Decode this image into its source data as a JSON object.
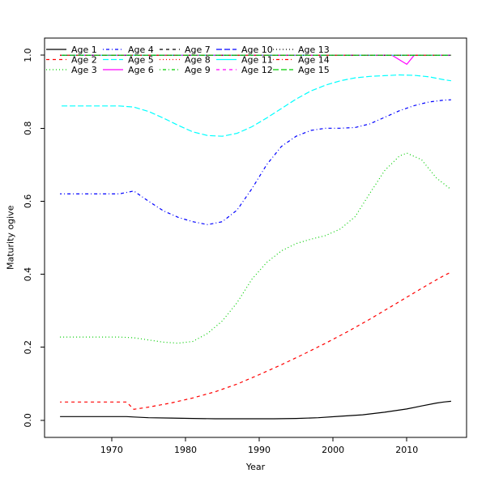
{
  "chart_data": {
    "type": "line",
    "title": "",
    "xlabel": "Year",
    "ylabel": "Maturity ogive",
    "xlim": [
      1960.9,
      2018.1
    ],
    "ylim": [
      -0.047,
      1.047
    ],
    "xtick_values": [
      1970,
      1980,
      1990,
      2000,
      2010
    ],
    "xtick_labels": [
      "1970",
      "1980",
      "1990",
      "2000",
      "2010"
    ],
    "ytick_values": [
      0.0,
      0.2,
      0.4,
      0.6,
      0.8,
      1.0
    ],
    "ytick_labels": [
      "0.0",
      "0.2",
      "0.4",
      "0.6",
      "0.8",
      "1.0"
    ],
    "grid": false,
    "data_year_range": [
      1963,
      2016
    ],
    "legend": {
      "position": "top-left",
      "columns": 5,
      "rows": 3,
      "fill": "column-major",
      "border": "none"
    },
    "palette": {
      "black": "#000000",
      "red": "#FF0000",
      "green": "#00CD00",
      "blue": "#0000FF",
      "cyan": "#00FFFF",
      "magenta": "#FF00FF"
    },
    "series": [
      {
        "name": "Age 1",
        "color": "#000000",
        "linetype": "solid",
        "points": [
          [
            1963,
            0.01
          ],
          [
            1967,
            0.01
          ],
          [
            1970,
            0.01
          ],
          [
            1972,
            0.01
          ],
          [
            1973,
            0.009
          ],
          [
            1975,
            0.007
          ],
          [
            1978,
            0.006
          ],
          [
            1981,
            0.005
          ],
          [
            1984,
            0.004
          ],
          [
            1988,
            0.004
          ],
          [
            1992,
            0.004
          ],
          [
            1995,
            0.005
          ],
          [
            1998,
            0.007
          ],
          [
            2001,
            0.011
          ],
          [
            2004,
            0.015
          ],
          [
            2007,
            0.022
          ],
          [
            2010,
            0.031
          ],
          [
            2012,
            0.039
          ],
          [
            2014,
            0.047
          ],
          [
            2015,
            0.05
          ],
          [
            2016,
            0.052
          ]
        ]
      },
      {
        "name": "Age 2",
        "color": "#FF0000",
        "linetype": "dashed",
        "points": [
          [
            1963,
            0.05
          ],
          [
            1967,
            0.05
          ],
          [
            1970,
            0.05
          ],
          [
            1972,
            0.05
          ],
          [
            1973,
            0.03
          ],
          [
            1975,
            0.036
          ],
          [
            1978,
            0.047
          ],
          [
            1981,
            0.061
          ],
          [
            1984,
            0.078
          ],
          [
            1987,
            0.099
          ],
          [
            1990,
            0.125
          ],
          [
            1993,
            0.152
          ],
          [
            1996,
            0.181
          ],
          [
            1999,
            0.211
          ],
          [
            2002,
            0.243
          ],
          [
            2005,
            0.277
          ],
          [
            2008,
            0.313
          ],
          [
            2011,
            0.349
          ],
          [
            2013,
            0.373
          ],
          [
            2015,
            0.396
          ],
          [
            2016,
            0.406
          ]
        ]
      },
      {
        "name": "Age 3",
        "color": "#00CD00",
        "linetype": "dotted",
        "points": [
          [
            1963,
            0.228
          ],
          [
            1967,
            0.228
          ],
          [
            1971,
            0.228
          ],
          [
            1973,
            0.226
          ],
          [
            1975,
            0.22
          ],
          [
            1977,
            0.214
          ],
          [
            1979,
            0.211
          ],
          [
            1981,
            0.216
          ],
          [
            1983,
            0.238
          ],
          [
            1985,
            0.272
          ],
          [
            1987,
            0.322
          ],
          [
            1989,
            0.386
          ],
          [
            1991,
            0.432
          ],
          [
            1993,
            0.464
          ],
          [
            1995,
            0.484
          ],
          [
            1997,
            0.496
          ],
          [
            1999,
            0.506
          ],
          [
            2001,
            0.524
          ],
          [
            2003,
            0.558
          ],
          [
            2005,
            0.622
          ],
          [
            2007,
            0.684
          ],
          [
            2009,
            0.724
          ],
          [
            2010,
            0.732
          ],
          [
            2012,
            0.714
          ],
          [
            2014,
            0.664
          ],
          [
            2016,
            0.632
          ]
        ]
      },
      {
        "name": "Age 4",
        "color": "#0000FF",
        "linetype": "dotdash",
        "points": [
          [
            1963,
            0.62
          ],
          [
            1967,
            0.62
          ],
          [
            1971,
            0.62
          ],
          [
            1973,
            0.628
          ],
          [
            1975,
            0.6
          ],
          [
            1977,
            0.574
          ],
          [
            1979,
            0.556
          ],
          [
            1981,
            0.544
          ],
          [
            1983,
            0.536
          ],
          [
            1985,
            0.544
          ],
          [
            1987,
            0.576
          ],
          [
            1989,
            0.634
          ],
          [
            1991,
            0.7
          ],
          [
            1993,
            0.75
          ],
          [
            1995,
            0.778
          ],
          [
            1997,
            0.794
          ],
          [
            1999,
            0.8
          ],
          [
            2001,
            0.8
          ],
          [
            2003,
            0.802
          ],
          [
            2005,
            0.812
          ],
          [
            2007,
            0.83
          ],
          [
            2009,
            0.848
          ],
          [
            2011,
            0.862
          ],
          [
            2013,
            0.872
          ],
          [
            2015,
            0.877
          ],
          [
            2016,
            0.878
          ]
        ]
      },
      {
        "name": "Age 5",
        "color": "#00FFFF",
        "linetype": "longdash",
        "points": [
          [
            1963,
            0.861
          ],
          [
            1967,
            0.861
          ],
          [
            1971,
            0.861
          ],
          [
            1973,
            0.858
          ],
          [
            1975,
            0.846
          ],
          [
            1977,
            0.828
          ],
          [
            1979,
            0.808
          ],
          [
            1981,
            0.79
          ],
          [
            1983,
            0.78
          ],
          [
            1985,
            0.778
          ],
          [
            1987,
            0.786
          ],
          [
            1989,
            0.804
          ],
          [
            1991,
            0.828
          ],
          [
            1993,
            0.854
          ],
          [
            1995,
            0.88
          ],
          [
            1997,
            0.902
          ],
          [
            1999,
            0.918
          ],
          [
            2001,
            0.93
          ],
          [
            2003,
            0.938
          ],
          [
            2005,
            0.942
          ],
          [
            2007,
            0.944
          ],
          [
            2009,
            0.946
          ],
          [
            2011,
            0.945
          ],
          [
            2013,
            0.941
          ],
          [
            2015,
            0.933
          ],
          [
            2016,
            0.93
          ]
        ]
      },
      {
        "name": "Age 6",
        "color": "#FF00FF",
        "linetype": "solid",
        "points": [
          [
            1963,
            1.0
          ],
          [
            2008,
            1.0
          ],
          [
            2010,
            0.975
          ],
          [
            2011,
            1.0
          ],
          [
            2016,
            1.0
          ]
        ]
      },
      {
        "name": "Age 7",
        "color": "#000000",
        "linetype": "dashed",
        "points": [
          [
            1963,
            1.0
          ],
          [
            2016,
            1.0
          ]
        ]
      },
      {
        "name": "Age 8",
        "color": "#FF0000",
        "linetype": "dotted",
        "points": [
          [
            1963,
            1.0
          ],
          [
            2016,
            1.0
          ]
        ]
      },
      {
        "name": "Age 9",
        "color": "#00CD00",
        "linetype": "dotdash",
        "points": [
          [
            1963,
            1.0
          ],
          [
            2016,
            1.0
          ]
        ]
      },
      {
        "name": "Age 10",
        "color": "#0000FF",
        "linetype": "longdash",
        "points": [
          [
            1963,
            1.0
          ],
          [
            2016,
            1.0
          ]
        ]
      },
      {
        "name": "Age 11",
        "color": "#00FFFF",
        "linetype": "solid",
        "points": [
          [
            1963,
            1.0
          ],
          [
            2016,
            1.0
          ]
        ]
      },
      {
        "name": "Age 12",
        "color": "#FF00FF",
        "linetype": "dashed",
        "points": [
          [
            1963,
            1.0
          ],
          [
            2016,
            1.0
          ]
        ]
      },
      {
        "name": "Age 13",
        "color": "#000000",
        "linetype": "dotted",
        "points": [
          [
            1963,
            1.0
          ],
          [
            2016,
            1.0
          ]
        ]
      },
      {
        "name": "Age 14",
        "color": "#FF0000",
        "linetype": "dotdash",
        "points": [
          [
            1963,
            1.0
          ],
          [
            2016,
            1.0
          ]
        ]
      },
      {
        "name": "Age 15",
        "color": "#00CD00",
        "linetype": "longdash",
        "points": [
          [
            1963,
            1.0
          ],
          [
            2016,
            1.0
          ]
        ]
      }
    ]
  }
}
